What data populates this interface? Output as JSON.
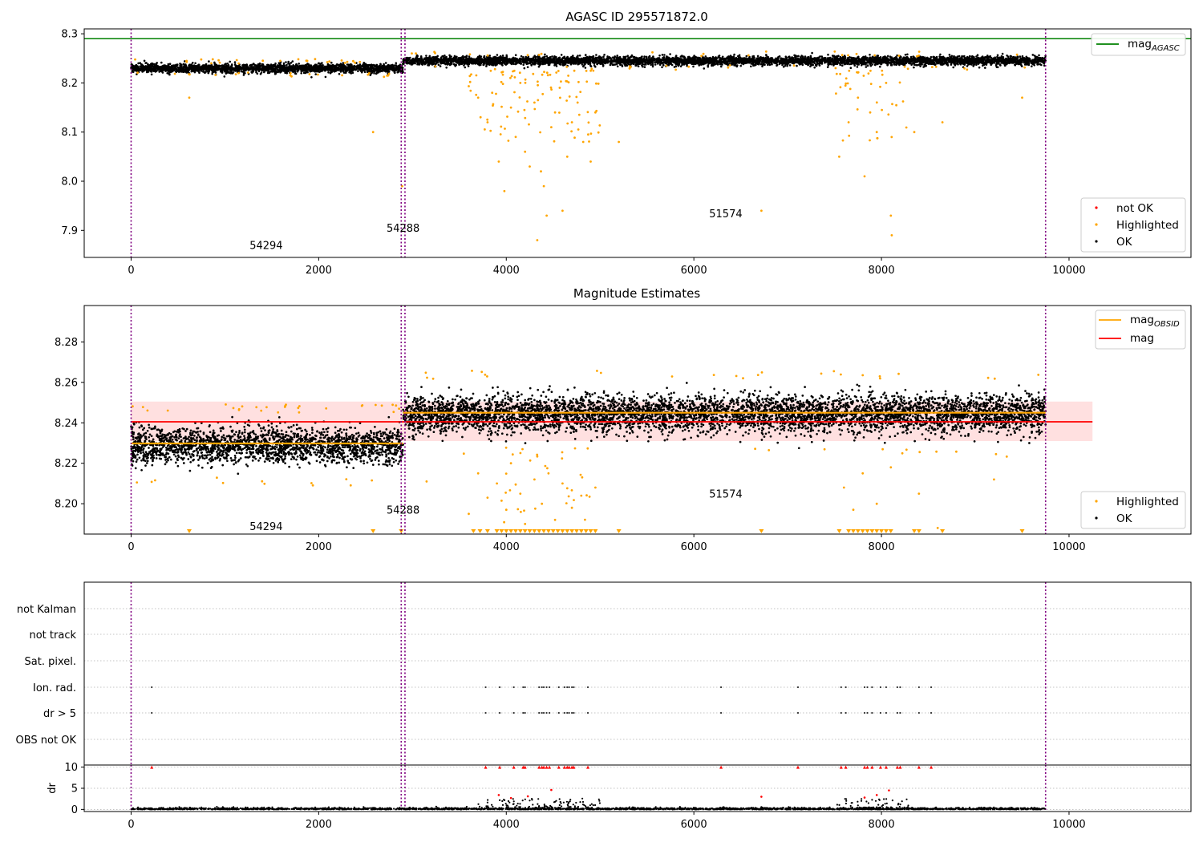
{
  "chart_data": [
    {
      "type": "scatter",
      "title": "AGASC ID 295571872.0",
      "xlim": [
        -500,
        11300
      ],
      "ylim": [
        7.845,
        8.31
      ],
      "x_ticks": [
        "0",
        "2000",
        "4000",
        "6000",
        "8000",
        "10000"
      ],
      "y_ticks": [
        "7.9",
        "8.0",
        "8.1",
        "8.2",
        "8.3"
      ],
      "mag_agasc": 8.29,
      "obs_boundaries": [
        0,
        2880,
        2920,
        9750
      ],
      "obsid_labels": [
        {
          "text": "54294",
          "x": 1440,
          "y": 7.87
        },
        {
          "text": "54288",
          "x": 2900,
          "y": 7.905
        },
        {
          "text": "51574",
          "x": 6340,
          "y": 7.935
        }
      ],
      "segments": [
        {
          "x_start": 0,
          "x_end": 2900,
          "ok_mean": 8.23,
          "ok_spread": 0.008
        },
        {
          "x_start": 2900,
          "x_end": 9750,
          "ok_mean": 8.245,
          "ok_spread": 0.008
        }
      ],
      "highlighted": [
        {
          "x": 3700,
          "y": 8.17
        },
        {
          "x": 3800,
          "y": 8.12
        },
        {
          "x": 3850,
          "y": 8.18
        },
        {
          "x": 3920,
          "y": 8.04
        },
        {
          "x": 3980,
          "y": 7.98
        },
        {
          "x": 4050,
          "y": 8.15
        },
        {
          "x": 4100,
          "y": 8.09
        },
        {
          "x": 4150,
          "y": 8.2
        },
        {
          "x": 4200,
          "y": 8.06
        },
        {
          "x": 4250,
          "y": 8.03
        },
        {
          "x": 4300,
          "y": 8.16
        },
        {
          "x": 4330,
          "y": 7.88
        },
        {
          "x": 4370,
          "y": 8.02
        },
        {
          "x": 4400,
          "y": 7.99
        },
        {
          "x": 4430,
          "y": 7.93
        },
        {
          "x": 4480,
          "y": 8.11
        },
        {
          "x": 4520,
          "y": 8.14
        },
        {
          "x": 4570,
          "y": 8.19
        },
        {
          "x": 4600,
          "y": 7.94
        },
        {
          "x": 4650,
          "y": 8.05
        },
        {
          "x": 4700,
          "y": 8.12
        },
        {
          "x": 4760,
          "y": 8.16
        },
        {
          "x": 4820,
          "y": 8.08
        },
        {
          "x": 4900,
          "y": 8.04
        },
        {
          "x": 4950,
          "y": 8.14
        },
        {
          "x": 5200,
          "y": 8.08
        },
        {
          "x": 7550,
          "y": 8.05
        },
        {
          "x": 7650,
          "y": 8.12
        },
        {
          "x": 7750,
          "y": 8.17
        },
        {
          "x": 7820,
          "y": 8.01
        },
        {
          "x": 7880,
          "y": 8.14
        },
        {
          "x": 7950,
          "y": 8.1
        },
        {
          "x": 8050,
          "y": 8.2
        },
        {
          "x": 8100,
          "y": 7.93
        },
        {
          "x": 8110,
          "y": 7.89
        },
        {
          "x": 8350,
          "y": 8.1
        },
        {
          "x": 8650,
          "y": 8.12
        },
        {
          "x": 6720,
          "y": 7.94
        },
        {
          "x": 2580,
          "y": 8.1
        },
        {
          "x": 620,
          "y": 8.17
        },
        {
          "x": 2890,
          "y": 7.99
        },
        {
          "x": 9500,
          "y": 8.17
        }
      ],
      "legend_top": [
        {
          "label": "mag",
          "subscript": "AGASC",
          "color": "#008000"
        }
      ],
      "legend_bottom": [
        {
          "label": "not OK",
          "color": "#ff0000"
        },
        {
          "label": "Highlighted",
          "color": "#ffa500"
        },
        {
          "label": "OK",
          "color": "#000000"
        }
      ]
    },
    {
      "type": "scatter",
      "title": "Magnitude Estimates",
      "xlim": [
        -500,
        11300
      ],
      "ylim": [
        8.185,
        8.298
      ],
      "x_ticks": [
        "0",
        "2000",
        "4000",
        "6000",
        "8000",
        "10000"
      ],
      "y_ticks": [
        "8.20",
        "8.22",
        "8.24",
        "8.26",
        "8.28"
      ],
      "mag": 8.2405,
      "mag_band": [
        8.231,
        8.2505
      ],
      "mag_line_xrange": [
        0,
        10250
      ],
      "obs_boundaries": [
        0,
        2880,
        2920,
        9750
      ],
      "obsid_labels": [
        {
          "text": "54294",
          "x": 1440,
          "y": 8.189
        },
        {
          "text": "54288",
          "x": 2900,
          "y": 8.197
        },
        {
          "text": "51574",
          "x": 6340,
          "y": 8.205
        }
      ],
      "segments": [
        {
          "x_start": 0,
          "x_end": 2900,
          "mag_obsid": 8.2298,
          "ok_mean": 8.229,
          "ok_spread": 0.007
        },
        {
          "x_start": 2900,
          "x_end": 9750,
          "mag_obsid": 8.245,
          "ok_mean": 8.2445,
          "ok_spread": 0.0075
        }
      ],
      "highlighted": [
        {
          "x": 3600,
          "y": 8.195
        },
        {
          "x": 3700,
          "y": 8.215
        },
        {
          "x": 3800,
          "y": 8.203
        },
        {
          "x": 3900,
          "y": 8.21
        },
        {
          "x": 4000,
          "y": 8.197
        },
        {
          "x": 4050,
          "y": 8.22
        },
        {
          "x": 4150,
          "y": 8.205
        },
        {
          "x": 4200,
          "y": 8.19
        },
        {
          "x": 4300,
          "y": 8.212
        },
        {
          "x": 4380,
          "y": 8.2
        },
        {
          "x": 4450,
          "y": 8.215
        },
        {
          "x": 4520,
          "y": 8.192
        },
        {
          "x": 4600,
          "y": 8.21
        },
        {
          "x": 4700,
          "y": 8.198
        },
        {
          "x": 4800,
          "y": 8.204
        },
        {
          "x": 4950,
          "y": 8.208
        },
        {
          "x": 7600,
          "y": 8.208
        },
        {
          "x": 7700,
          "y": 8.197
        },
        {
          "x": 7800,
          "y": 8.215
        },
        {
          "x": 7950,
          "y": 8.2
        },
        {
          "x": 8100,
          "y": 8.218
        },
        {
          "x": 8400,
          "y": 8.205
        },
        {
          "x": 8600,
          "y": 8.188
        },
        {
          "x": 3150,
          "y": 8.211
        },
        {
          "x": 9200,
          "y": 8.212
        }
      ],
      "clipped_markers_x": [
        620,
        2580,
        2880,
        3650,
        3720,
        3800,
        3900,
        3950,
        4000,
        4050,
        4100,
        4150,
        4200,
        4250,
        4300,
        4350,
        4400,
        4450,
        4500,
        4550,
        4600,
        4650,
        4700,
        4750,
        4800,
        4850,
        4900,
        4950,
        5200,
        6720,
        7550,
        7650,
        7700,
        7750,
        7800,
        7850,
        7900,
        7950,
        8000,
        8050,
        8100,
        8350,
        8400,
        8650,
        9500
      ],
      "legend_top": [
        {
          "label": "mag",
          "subscript": "OBSID",
          "color": "#ffa500"
        },
        {
          "label": "mag",
          "subscript": "",
          "color": "#ff0000"
        }
      ],
      "legend_bottom": [
        {
          "label": "Highlighted",
          "color": "#ffa500"
        },
        {
          "label": "OK",
          "color": "#000000"
        }
      ]
    },
    {
      "type": "scatter",
      "xlim": [
        -500,
        11300
      ],
      "x_ticks": [
        "0",
        "2000",
        "4000",
        "6000",
        "8000",
        "10000"
      ],
      "flag_rows": [
        "not Kalman",
        "not track",
        "Sat. pixel.",
        "Ion. rad.",
        "dr > 5",
        "OBS not OK"
      ],
      "obs_boundaries": [
        0,
        2880,
        2920,
        9750
      ],
      "flag_points": {
        "Ion. rad.": [
          220,
          3780,
          3930,
          4080,
          4180,
          4200,
          4350,
          4380,
          4400,
          4430,
          4460,
          4560,
          4620,
          4650,
          4670,
          4700,
          4720,
          4870,
          6290,
          7110,
          7570,
          7620,
          7820,
          7850,
          7900,
          7990,
          8050,
          8170,
          8200,
          8400,
          8530
        ],
        "dr > 5": [
          220,
          3780,
          3930,
          4080,
          4180,
          4200,
          4350,
          4380,
          4400,
          4430,
          4460,
          4560,
          4620,
          4650,
          4670,
          4700,
          4720,
          4870,
          6290,
          7110,
          7570,
          7620,
          7820,
          7850,
          7900,
          7990,
          8050,
          8170,
          8200,
          8400,
          8530
        ]
      }
    },
    {
      "type": "scatter",
      "ylabel": "dr",
      "xlim": [
        -500,
        11300
      ],
      "ylim": [
        -0.5,
        10.5
      ],
      "x_ticks": [
        "0",
        "2000",
        "4000",
        "6000",
        "8000",
        "10000"
      ],
      "y_ticks": [
        "0",
        "5",
        "10"
      ],
      "not_ok_capped_x": [
        220,
        3780,
        3930,
        4080,
        4180,
        4200,
        4350,
        4380,
        4400,
        4430,
        4460,
        4560,
        4620,
        4650,
        4670,
        4700,
        4720,
        4870,
        6290,
        7110,
        7570,
        7620,
        7820,
        7850,
        7900,
        7990,
        8050,
        8170,
        8200,
        8400,
        8530
      ],
      "not_ok_points": [
        {
          "x": 3920,
          "y": 3.4
        },
        {
          "x": 4050,
          "y": 2.7
        },
        {
          "x": 4230,
          "y": 3.1
        },
        {
          "x": 4480,
          "y": 4.6
        },
        {
          "x": 6720,
          "y": 3.0
        },
        {
          "x": 7820,
          "y": 2.8
        },
        {
          "x": 7950,
          "y": 3.4
        },
        {
          "x": 8080,
          "y": 4.5
        }
      ],
      "obs_boundaries": [
        0,
        2880,
        2920,
        9750
      ]
    }
  ]
}
